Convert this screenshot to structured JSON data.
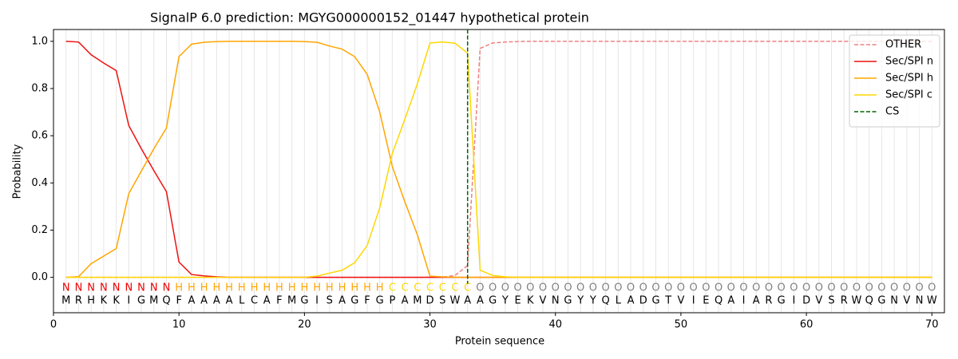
{
  "chart_data": {
    "type": "line",
    "title": "SignalP 6.0 prediction: MGYG000000152_01447 hypothetical protein",
    "xlabel": "Protein sequence",
    "ylabel": "Probability",
    "x": [
      1,
      2,
      3,
      4,
      5,
      6,
      7,
      8,
      9,
      10,
      11,
      12,
      13,
      14,
      15,
      16,
      17,
      18,
      19,
      20,
      21,
      22,
      23,
      24,
      25,
      26,
      27,
      28,
      29,
      30,
      31,
      32,
      33,
      34,
      35,
      36,
      37,
      38,
      39,
      40,
      41,
      42,
      43,
      44,
      45,
      46,
      47,
      48,
      49,
      50,
      51,
      52,
      53,
      54,
      55,
      56,
      57,
      58,
      59,
      60,
      61,
      62,
      63,
      64,
      65,
      66,
      67,
      68,
      69,
      70
    ],
    "sequence": [
      "M",
      "R",
      "H",
      "K",
      "K",
      "I",
      "G",
      "M",
      "Q",
      "F",
      "A",
      "A",
      "A",
      "A",
      "L",
      "C",
      "A",
      "F",
      "M",
      "G",
      "I",
      "S",
      "A",
      "G",
      "F",
      "G",
      "P",
      "A",
      "M",
      "D",
      "S",
      "W",
      "A",
      "A",
      "G",
      "Y",
      "E",
      "K",
      "V",
      "N",
      "G",
      "Y",
      "Y",
      "Q",
      "L",
      "A",
      "D",
      "G",
      "T",
      "V",
      "I",
      "E",
      "Q",
      "A",
      "I",
      "A",
      "R",
      "G",
      "I",
      "D",
      "V",
      "S",
      "R",
      "W",
      "Q",
      "G",
      "N",
      "V",
      "N",
      "W"
    ],
    "labels": [
      "N",
      "N",
      "N",
      "N",
      "N",
      "N",
      "N",
      "N",
      "N",
      "H",
      "H",
      "H",
      "H",
      "H",
      "H",
      "H",
      "H",
      "H",
      "H",
      "H",
      "H",
      "H",
      "H",
      "H",
      "H",
      "H",
      "C",
      "C",
      "C",
      "C",
      "C",
      "C",
      "C",
      "O",
      "O",
      "O",
      "O",
      "O",
      "O",
      "O",
      "O",
      "O",
      "O",
      "O",
      "O",
      "O",
      "O",
      "O",
      "O",
      "O",
      "O",
      "O",
      "O",
      "O",
      "O",
      "O",
      "O",
      "O",
      "O",
      "O",
      "O",
      "O",
      "O",
      "O",
      "O",
      "O",
      "O",
      "O",
      "O",
      "O"
    ],
    "label_colors": {
      "N": "#ee0000",
      "H": "#ffa500",
      "C": "#ffd700",
      "O": "#808080"
    },
    "series": [
      {
        "name": "OTHER",
        "color": "#f08080",
        "dash": true,
        "values": [
          0,
          0,
          0,
          0,
          0,
          0,
          0,
          0,
          0,
          0,
          0,
          0,
          0,
          0,
          0,
          0,
          0,
          0,
          0,
          0,
          0,
          0,
          0,
          0,
          0,
          0,
          0,
          0,
          0,
          0.001,
          0.001,
          0.008,
          0.05,
          0.97,
          0.993,
          0.997,
          0.999,
          1,
          1,
          1,
          1,
          1,
          1,
          1,
          1,
          1,
          1,
          1,
          1,
          1,
          1,
          1,
          1,
          1,
          1,
          1,
          1,
          1,
          1,
          1,
          1,
          1,
          1,
          1,
          1,
          1,
          1,
          1,
          1,
          1
        ]
      },
      {
        "name": "Sec/SPI n",
        "color": "#ee1111",
        "values": [
          1.0,
          0.997,
          0.943,
          0.908,
          0.876,
          0.643,
          0.545,
          0.452,
          0.363,
          0.065,
          0.012,
          0.006,
          0.002,
          0,
          0,
          0,
          0,
          0,
          0,
          0,
          0,
          0,
          0,
          0,
          0,
          0,
          0,
          0,
          0,
          0,
          0,
          0,
          0,
          0,
          0,
          0,
          0,
          0,
          0,
          0,
          0,
          0,
          0,
          0,
          0,
          0,
          0,
          0,
          0,
          0,
          0,
          0,
          0,
          0,
          0,
          0,
          0,
          0,
          0,
          0,
          0,
          0,
          0,
          0,
          0,
          0,
          0,
          0,
          0,
          0
        ]
      },
      {
        "name": "Sec/SPI h",
        "color": "#ffa500",
        "values": [
          0,
          0.003,
          0.058,
          0.09,
          0.122,
          0.355,
          0.45,
          0.545,
          0.633,
          0.935,
          0.988,
          0.996,
          0.999,
          1,
          1,
          1,
          1,
          1,
          1,
          0.999,
          0.996,
          0.98,
          0.967,
          0.935,
          0.86,
          0.7,
          0.47,
          0.32,
          0.18,
          0.005,
          0.002,
          0,
          0,
          0,
          0,
          0,
          0,
          0,
          0,
          0,
          0,
          0,
          0,
          0,
          0,
          0,
          0,
          0,
          0,
          0,
          0,
          0,
          0,
          0,
          0,
          0,
          0,
          0,
          0,
          0,
          0,
          0,
          0,
          0,
          0,
          0,
          0,
          0,
          0,
          0
        ]
      },
      {
        "name": "Sec/SPI c",
        "color": "#ffd700",
        "values": [
          0,
          0,
          0,
          0,
          0,
          0,
          0,
          0,
          0,
          0,
          0,
          0,
          0,
          0,
          0,
          0,
          0,
          0,
          0,
          0,
          0.005,
          0.018,
          0.03,
          0.062,
          0.135,
          0.295,
          0.525,
          0.67,
          0.82,
          0.993,
          0.997,
          0.992,
          0.95,
          0.03,
          0.008,
          0.002,
          0,
          0,
          0,
          0,
          0,
          0,
          0,
          0,
          0,
          0,
          0,
          0,
          0,
          0,
          0,
          0,
          0,
          0,
          0,
          0,
          0,
          0,
          0,
          0,
          0,
          0,
          0,
          0,
          0,
          0,
          0,
          0,
          0,
          0
        ]
      }
    ],
    "cs": {
      "name": "CS",
      "color": "#006400",
      "x": 33
    },
    "xlim": [
      0,
      71
    ],
    "ylim": [
      -0.15,
      1.05
    ],
    "xticks": [
      0,
      10,
      20,
      30,
      40,
      50,
      60,
      70
    ],
    "yticks": [
      {
        "value": 0,
        "label": "0.0"
      },
      0.2,
      0.4,
      0.6,
      0.8,
      {
        "value": 1,
        "label": "1.0"
      }
    ],
    "grid": true,
    "legend": "upper right"
  }
}
